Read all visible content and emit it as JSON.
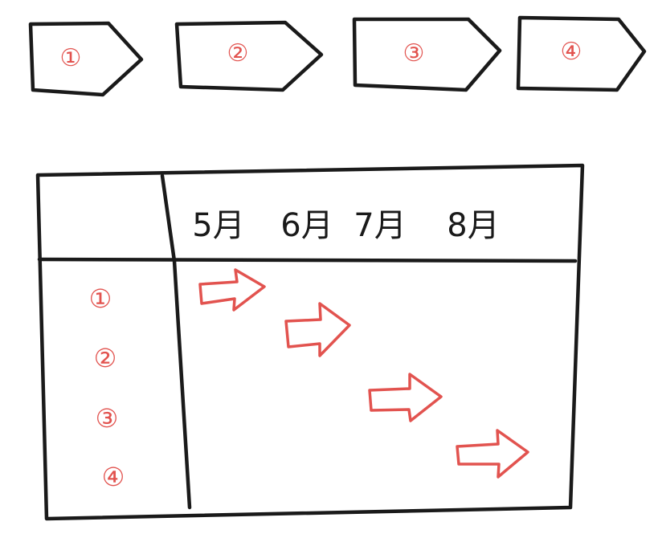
{
  "colors": {
    "ink": "#1a1a1a",
    "red": "#e2534f",
    "background": "#ffffff"
  },
  "steps": [
    {
      "label": "①"
    },
    {
      "label": "②"
    },
    {
      "label": "③"
    },
    {
      "label": "④"
    }
  ],
  "table": {
    "months": [
      "5月",
      "6月",
      "7月",
      "8月"
    ],
    "rows": [
      {
        "label": "①"
      },
      {
        "label": "②"
      },
      {
        "label": "③"
      },
      {
        "label": "④"
      }
    ]
  }
}
